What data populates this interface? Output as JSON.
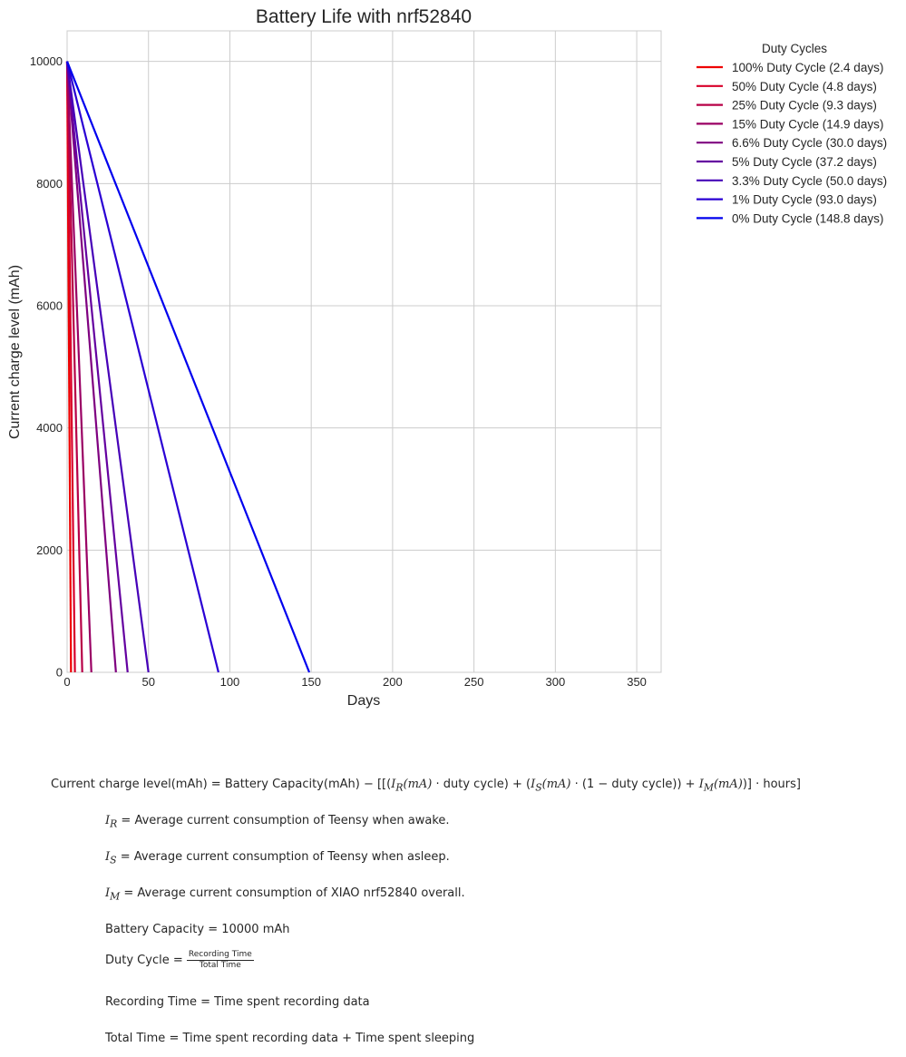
{
  "chart_data": {
    "type": "line",
    "title": "Battery Life with nrf52840",
    "xlabel": "Days",
    "ylabel": "Current charge level (mAh)",
    "xlim": [
      0,
      365
    ],
    "ylim": [
      0,
      10500
    ],
    "xticks": [
      0,
      50,
      100,
      150,
      200,
      250,
      300,
      350
    ],
    "yticks": [
      0,
      2000,
      4000,
      6000,
      8000,
      10000
    ],
    "grid": true,
    "legend": {
      "title": "Duty Cycles",
      "placement": "outside-top-right"
    },
    "series": [
      {
        "name": "100% Duty Cycle (2.4 days)",
        "color": "#ee0000",
        "x": [
          0,
          2.4
        ],
        "y": [
          10000,
          0
        ]
      },
      {
        "name": "50% Duty Cycle (4.8 days)",
        "color": "#d8002a",
        "x": [
          0,
          4.8
        ],
        "y": [
          10000,
          0
        ]
      },
      {
        "name": "25% Duty Cycle (9.3 days)",
        "color": "#b70047",
        "x": [
          0,
          9.3
        ],
        "y": [
          10000,
          0
        ]
      },
      {
        "name": "15% Duty Cycle (14.9 days)",
        "color": "#9a0064",
        "x": [
          0,
          14.9
        ],
        "y": [
          10000,
          0
        ]
      },
      {
        "name": "6.6% Duty Cycle (30.0 days)",
        "color": "#7f0080",
        "x": [
          0,
          30.0
        ],
        "y": [
          10000,
          0
        ]
      },
      {
        "name": "5% Duty Cycle (37.2 days)",
        "color": "#6400a0",
        "x": [
          0,
          37.2
        ],
        "y": [
          10000,
          0
        ]
      },
      {
        "name": "3.3% Duty Cycle (50.0 days)",
        "color": "#4600b8",
        "x": [
          0,
          50.0
        ],
        "y": [
          10000,
          0
        ]
      },
      {
        "name": "1% Duty Cycle (93.0 days)",
        "color": "#2a00d4",
        "x": [
          0,
          93.0
        ],
        "y": [
          10000,
          0
        ]
      },
      {
        "name": "0% Duty Cycle (148.8 days)",
        "color": "#0000ee",
        "x": [
          0,
          148.8
        ],
        "y": [
          10000,
          0
        ]
      }
    ]
  },
  "formulas": {
    "main": {
      "lhs": "Current charge level(mAh) = Battery Capacity(mAh) − [[(",
      "ir": "I",
      "ir_sub": "R",
      "ma1": "(mA)",
      "mid1": " · duty cycle) + (",
      "is": "I",
      "is_sub": "S",
      "ma2": "(mA)",
      "mid2": " · (1 − duty cycle)) + ",
      "im": "I",
      "im_sub": "M",
      "ma3": "(mA)",
      "tail": ")] · hours]"
    },
    "ir_def": {
      "sym": "I",
      "sub": "R",
      "text": " = Average current consumption of Teensy when awake."
    },
    "is_def": {
      "sym": "I",
      "sub": "S",
      "text": " = Average current consumption of Teensy when asleep."
    },
    "im_def": {
      "sym": "I",
      "sub": "M",
      "text": " = Average current consumption of XIAO nrf52840 overall."
    },
    "capacity": "Battery Capacity = 10000 mAh",
    "duty": {
      "lhs": "Duty Cycle = ",
      "num": "Recording Time",
      "den": "Total Time"
    },
    "recording": "Recording Time = Time spent recording data",
    "total": "Total Time = Time spent recording data + Time spent sleeping"
  }
}
